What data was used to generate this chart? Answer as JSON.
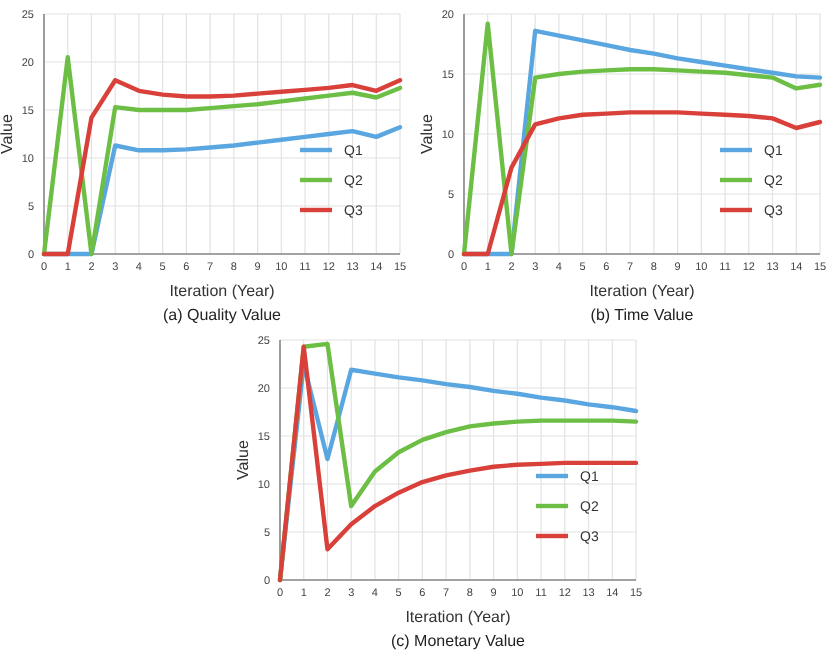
{
  "chart_data": [
    {
      "type": "line",
      "title": "(a) Quality Value",
      "xlabel": "Iteration (Year)",
      "ylabel": "Value",
      "x": [
        0,
        1,
        2,
        3,
        4,
        5,
        6,
        7,
        8,
        9,
        10,
        11,
        12,
        13,
        14,
        15
      ],
      "xlim": [
        0,
        15
      ],
      "xticks": [
        0,
        1,
        2,
        3,
        4,
        5,
        6,
        7,
        8,
        9,
        10,
        11,
        12,
        13,
        14,
        15
      ],
      "ylim": [
        0,
        25
      ],
      "yticks": [
        0,
        5,
        10,
        15,
        20,
        25
      ],
      "grid": true,
      "legend": "bottom right",
      "series": [
        {
          "name": "Q1",
          "color": "#5aa6e0",
          "values": [
            0,
            0,
            0,
            11.3,
            10.8,
            10.8,
            10.9,
            11.1,
            11.3,
            11.6,
            11.9,
            12.2,
            12.5,
            12.8,
            12.2,
            13.2
          ]
        },
        {
          "name": "Q2",
          "color": "#6cbf44",
          "values": [
            0,
            20.5,
            0,
            15.3,
            15.0,
            15.0,
            15.0,
            15.2,
            15.4,
            15.6,
            15.9,
            16.2,
            16.5,
            16.8,
            16.3,
            17.3
          ]
        },
        {
          "name": "Q3",
          "color": "#d9403a",
          "values": [
            0,
            0,
            14.2,
            18.1,
            17.0,
            16.6,
            16.4,
            16.4,
            16.5,
            16.7,
            16.9,
            17.1,
            17.3,
            17.6,
            17.0,
            18.1
          ]
        }
      ]
    },
    {
      "type": "line",
      "title": "(b) Time Value",
      "xlabel": "Iteration (Year)",
      "ylabel": "Value",
      "x": [
        0,
        1,
        2,
        3,
        4,
        5,
        6,
        7,
        8,
        9,
        10,
        11,
        12,
        13,
        14,
        15
      ],
      "xlim": [
        0,
        15
      ],
      "xticks": [
        0,
        1,
        2,
        3,
        4,
        5,
        6,
        7,
        8,
        9,
        10,
        11,
        12,
        13,
        14,
        15
      ],
      "ylim": [
        0,
        20
      ],
      "yticks": [
        0,
        5,
        10,
        15,
        20
      ],
      "grid": true,
      "legend": "bottom right",
      "series": [
        {
          "name": "Q1",
          "color": "#5aa6e0",
          "values": [
            0,
            0,
            0,
            18.6,
            18.2,
            17.8,
            17.4,
            17.0,
            16.7,
            16.3,
            16.0,
            15.7,
            15.4,
            15.1,
            14.8,
            14.7
          ]
        },
        {
          "name": "Q2",
          "color": "#6cbf44",
          "values": [
            0,
            19.2,
            0,
            14.7,
            15.0,
            15.2,
            15.3,
            15.4,
            15.4,
            15.3,
            15.2,
            15.1,
            14.9,
            14.7,
            13.8,
            14.1
          ]
        },
        {
          "name": "Q3",
          "color": "#d9403a",
          "values": [
            0,
            0,
            7.2,
            10.8,
            11.3,
            11.6,
            11.7,
            11.8,
            11.8,
            11.8,
            11.7,
            11.6,
            11.5,
            11.3,
            10.5,
            11.0
          ]
        }
      ]
    },
    {
      "type": "line",
      "title": "(c) Monetary Value",
      "xlabel": "Iteration (Year)",
      "ylabel": "Value",
      "x": [
        0,
        1,
        2,
        3,
        4,
        5,
        6,
        7,
        8,
        9,
        10,
        11,
        12,
        13,
        14,
        15
      ],
      "xlim": [
        0,
        15
      ],
      "xticks": [
        0,
        1,
        2,
        3,
        4,
        5,
        6,
        7,
        8,
        9,
        10,
        11,
        12,
        13,
        14,
        15
      ],
      "ylim": [
        0,
        25
      ],
      "yticks": [
        0,
        5,
        10,
        15,
        20,
        25
      ],
      "grid": true,
      "legend": "bottom right",
      "series": [
        {
          "name": "Q1",
          "color": "#5aa6e0",
          "values": [
            0,
            22.5,
            12.6,
            21.9,
            21.5,
            21.1,
            20.8,
            20.4,
            20.1,
            19.7,
            19.4,
            19.0,
            18.7,
            18.3,
            18.0,
            17.6
          ]
        },
        {
          "name": "Q2",
          "color": "#6cbf44",
          "values": [
            0,
            24.3,
            24.6,
            7.7,
            11.3,
            13.3,
            14.6,
            15.4,
            16.0,
            16.3,
            16.5,
            16.6,
            16.6,
            16.6,
            16.6,
            16.5
          ]
        },
        {
          "name": "Q3",
          "color": "#d9403a",
          "values": [
            0,
            24.3,
            3.2,
            5.8,
            7.7,
            9.1,
            10.2,
            10.9,
            11.4,
            11.8,
            12.0,
            12.1,
            12.2,
            12.2,
            12.2,
            12.2
          ]
        }
      ]
    }
  ]
}
